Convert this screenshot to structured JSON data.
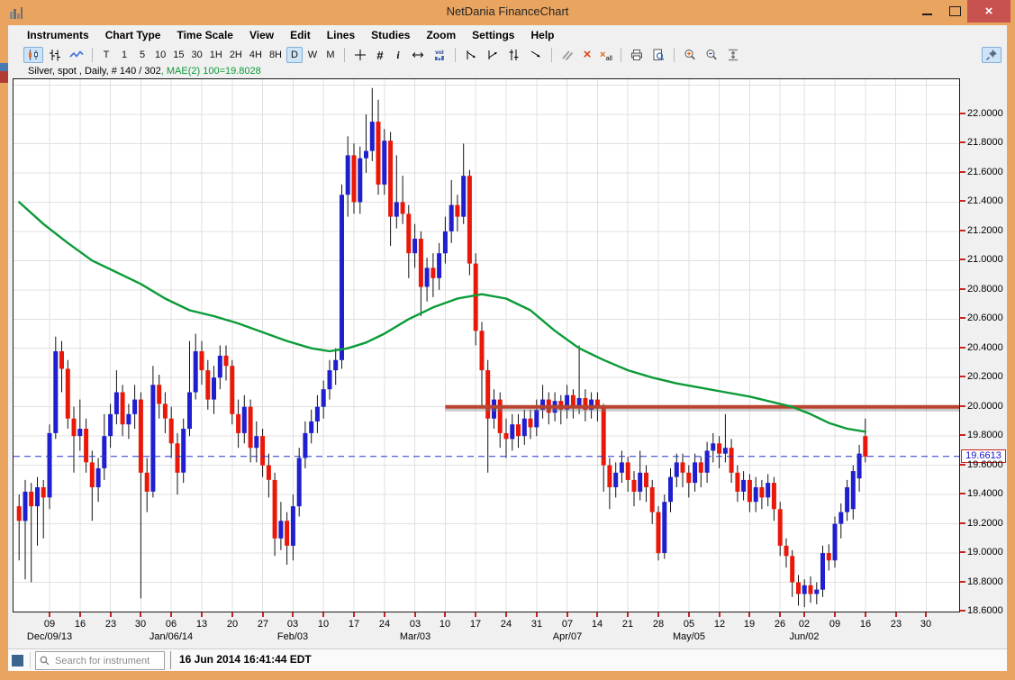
{
  "window": {
    "title": "NetDania FinanceChart",
    "controls": {
      "minimize": "minimize",
      "maximize": "maximize",
      "close": "×"
    }
  },
  "menu": {
    "items": [
      "Instruments",
      "Chart Type",
      "Time Scale",
      "View",
      "Edit",
      "Lines",
      "Studies",
      "Zoom",
      "Settings",
      "Help"
    ]
  },
  "toolbar": {
    "chart_type_group": [
      {
        "name": "candlestick-chart",
        "selected": true
      },
      {
        "name": "bar-chart",
        "selected": false
      },
      {
        "name": "line-chart",
        "selected": false
      }
    ],
    "time_scales": [
      {
        "label": "T"
      },
      {
        "label": "1"
      },
      {
        "label": "5"
      },
      {
        "label": "10"
      },
      {
        "label": "15"
      },
      {
        "label": "30"
      },
      {
        "label": "1H"
      },
      {
        "label": "2H"
      },
      {
        "label": "4H"
      },
      {
        "label": "8H"
      },
      {
        "label": "D",
        "selected": true
      },
      {
        "label": "W"
      },
      {
        "label": "M"
      }
    ],
    "tool_groups": [
      [
        "crosshair",
        "grid-toggle",
        "info",
        "scroll-horizontal",
        "volume"
      ],
      [
        "trend-line",
        "trend-ray",
        "equidistant-channel",
        "draw-arrow"
      ],
      [
        "parallel-lines",
        "delete-line",
        "delete-all-lines"
      ],
      [
        "print",
        "print-preview"
      ],
      [
        "zoom-in",
        "zoom-out",
        "fit-height"
      ]
    ],
    "glyphs": {
      "info": "i",
      "grid": "#",
      "delete": "×",
      "delete_all_suffix": "all",
      "volume": "vol"
    },
    "pin": {
      "name": "pin-window",
      "selected": true
    }
  },
  "chart": {
    "instrument_label": "Silver, spot , Daily, # 140 / 302",
    "study_label": ", MAE(2) 100=19.8028"
  },
  "chart_data": {
    "type": "candlestick",
    "title": "Silver, spot, Daily",
    "bars_shown": "140 / 302",
    "y_axis": {
      "min_label": 18.6,
      "max_label": 22.0,
      "step": 0.2,
      "top_price": 22.24,
      "bottom_price": 18.6
    },
    "y_tick_labels": [
      "22.0000",
      "21.8000",
      "21.6000",
      "21.4000",
      "21.2000",
      "21.0000",
      "20.8000",
      "20.6000",
      "20.4000",
      "20.2000",
      "20.0000",
      "19.8000",
      "19.6000",
      "19.4000",
      "19.2000",
      "19.0000",
      "18.8000",
      "18.6000"
    ],
    "x_ticks": [
      [
        5,
        "09"
      ],
      [
        10,
        "16"
      ],
      [
        15,
        "23"
      ],
      [
        20,
        "30"
      ],
      [
        25,
        "06"
      ],
      [
        30,
        "13"
      ],
      [
        35,
        "20"
      ],
      [
        40,
        "27"
      ],
      [
        45,
        "03"
      ],
      [
        50,
        "10"
      ],
      [
        55,
        "17"
      ],
      [
        60,
        "24"
      ],
      [
        65,
        "03"
      ],
      [
        70,
        "10"
      ],
      [
        75,
        "17"
      ],
      [
        80,
        "24"
      ],
      [
        85,
        "31"
      ],
      [
        90,
        "07"
      ],
      [
        95,
        "14"
      ],
      [
        100,
        "21"
      ],
      [
        105,
        "28"
      ],
      [
        110,
        "05"
      ],
      [
        115,
        "12"
      ],
      [
        120,
        "19"
      ],
      [
        125,
        "26"
      ],
      [
        129,
        "02"
      ],
      [
        134,
        "09"
      ],
      [
        139,
        "16"
      ],
      [
        144,
        "23"
      ],
      [
        149,
        "30"
      ]
    ],
    "x_month_labels": [
      [
        5,
        "Dec/09/13"
      ],
      [
        25,
        "Jan/06/14"
      ],
      [
        45,
        "Feb/03"
      ],
      [
        65,
        "Mar/03"
      ],
      [
        90,
        "Apr/07"
      ],
      [
        110,
        "May/05"
      ],
      [
        129,
        "Jun/02"
      ]
    ],
    "ohlc": [
      [
        19.32,
        19.4,
        18.95,
        19.22
      ],
      [
        19.22,
        19.5,
        18.82,
        19.42
      ],
      [
        19.42,
        19.48,
        18.8,
        19.32
      ],
      [
        19.32,
        19.52,
        19.05,
        19.45
      ],
      [
        19.45,
        19.5,
        19.1,
        19.38
      ],
      [
        19.38,
        19.88,
        19.3,
        19.82
      ],
      [
        19.82,
        20.48,
        19.78,
        20.38
      ],
      [
        20.38,
        20.45,
        20.1,
        20.26
      ],
      [
        20.26,
        20.32,
        19.85,
        19.92
      ],
      [
        19.92,
        20.0,
        19.55,
        19.8
      ],
      [
        19.8,
        20.05,
        19.7,
        19.85
      ],
      [
        19.85,
        19.92,
        19.55,
        19.62
      ],
      [
        19.62,
        19.7,
        19.22,
        19.45
      ],
      [
        19.45,
        19.65,
        19.35,
        19.58
      ],
      [
        19.58,
        19.95,
        19.5,
        19.8
      ],
      [
        19.8,
        20.02,
        19.72,
        19.95
      ],
      [
        19.95,
        20.25,
        19.88,
        20.1
      ],
      [
        20.1,
        20.15,
        19.8,
        19.88
      ],
      [
        19.88,
        20.02,
        19.78,
        19.95
      ],
      [
        19.95,
        20.15,
        19.85,
        20.05
      ],
      [
        20.05,
        20.1,
        18.69,
        19.55
      ],
      [
        19.55,
        19.65,
        19.28,
        19.42
      ],
      [
        19.42,
        20.28,
        19.38,
        20.15
      ],
      [
        20.15,
        20.22,
        19.92,
        20.02
      ],
      [
        20.02,
        20.1,
        19.82,
        19.92
      ],
      [
        19.92,
        20.0,
        19.65,
        19.75
      ],
      [
        19.75,
        19.82,
        19.4,
        19.55
      ],
      [
        19.55,
        19.92,
        19.48,
        19.85
      ],
      [
        19.85,
        20.45,
        19.8,
        20.1
      ],
      [
        20.1,
        20.5,
        20.05,
        20.38
      ],
      [
        20.38,
        20.45,
        20.15,
        20.25
      ],
      [
        20.25,
        20.32,
        19.98,
        20.05
      ],
      [
        20.05,
        20.28,
        19.95,
        20.2
      ],
      [
        20.2,
        20.42,
        20.12,
        20.35
      ],
      [
        20.35,
        20.42,
        20.18,
        20.28
      ],
      [
        20.28,
        20.32,
        19.88,
        19.95
      ],
      [
        19.95,
        20.05,
        19.72,
        19.82
      ],
      [
        19.82,
        20.08,
        19.75,
        20.0
      ],
      [
        20.0,
        20.05,
        19.62,
        19.72
      ],
      [
        19.72,
        19.9,
        19.62,
        19.8
      ],
      [
        19.8,
        19.85,
        19.52,
        19.6
      ],
      [
        19.6,
        19.68,
        19.38,
        19.5
      ],
      [
        19.5,
        19.55,
        18.98,
        19.1
      ],
      [
        19.1,
        19.35,
        19.02,
        19.22
      ],
      [
        19.22,
        19.28,
        18.92,
        19.05
      ],
      [
        19.05,
        19.4,
        18.95,
        19.32
      ],
      [
        19.32,
        19.72,
        19.25,
        19.65
      ],
      [
        19.65,
        19.9,
        19.58,
        19.82
      ],
      [
        19.82,
        19.98,
        19.75,
        19.9
      ],
      [
        19.9,
        20.08,
        19.82,
        20.0
      ],
      [
        20.0,
        20.18,
        19.92,
        20.12
      ],
      [
        20.12,
        20.32,
        20.05,
        20.25
      ],
      [
        20.25,
        20.4,
        20.15,
        20.32
      ],
      [
        20.32,
        21.52,
        20.26,
        21.45
      ],
      [
        21.45,
        21.85,
        21.3,
        21.72
      ],
      [
        21.72,
        21.8,
        21.32,
        21.4
      ],
      [
        21.4,
        21.78,
        21.32,
        21.7
      ],
      [
        21.7,
        22.0,
        21.6,
        21.75
      ],
      [
        21.75,
        22.18,
        21.68,
        21.95
      ],
      [
        21.95,
        22.1,
        21.45,
        21.52
      ],
      [
        21.52,
        21.9,
        21.45,
        21.82
      ],
      [
        21.82,
        21.88,
        21.1,
        21.3
      ],
      [
        21.3,
        21.72,
        21.22,
        21.4
      ],
      [
        21.4,
        21.58,
        21.25,
        21.32
      ],
      [
        21.32,
        21.38,
        20.88,
        21.05
      ],
      [
        21.05,
        21.25,
        20.95,
        21.15
      ],
      [
        21.15,
        21.2,
        20.62,
        20.82
      ],
      [
        20.82,
        21.02,
        20.72,
        20.95
      ],
      [
        20.95,
        21.05,
        20.75,
        20.88
      ],
      [
        20.88,
        21.12,
        20.8,
        21.05
      ],
      [
        21.05,
        21.3,
        20.98,
        21.2
      ],
      [
        21.2,
        21.55,
        21.12,
        21.38
      ],
      [
        21.38,
        21.45,
        21.2,
        21.3
      ],
      [
        21.3,
        21.8,
        21.25,
        21.58
      ],
      [
        21.58,
        21.62,
        20.9,
        20.98
      ],
      [
        20.98,
        21.05,
        20.42,
        20.52
      ],
      [
        20.52,
        20.58,
        20.0,
        20.25
      ],
      [
        20.25,
        20.32,
        19.55,
        19.92
      ],
      [
        19.92,
        20.12,
        19.85,
        20.05
      ],
      [
        20.05,
        20.1,
        19.72,
        19.82
      ],
      [
        19.82,
        19.92,
        19.65,
        19.78
      ],
      [
        19.78,
        19.95,
        19.7,
        19.88
      ],
      [
        19.88,
        19.95,
        19.72,
        19.8
      ],
      [
        19.8,
        19.98,
        19.74,
        19.92
      ],
      [
        19.92,
        19.98,
        19.78,
        19.86
      ],
      [
        19.86,
        20.05,
        19.8,
        19.98
      ],
      [
        19.98,
        20.15,
        19.92,
        20.05
      ],
      [
        20.05,
        20.1,
        19.88,
        19.96
      ],
      [
        19.96,
        20.1,
        19.9,
        20.04
      ],
      [
        20.04,
        20.08,
        19.88,
        19.98
      ],
      [
        19.98,
        20.15,
        19.92,
        20.08
      ],
      [
        20.08,
        20.12,
        19.92,
        20.0
      ],
      [
        20.0,
        20.42,
        19.95,
        20.06
      ],
      [
        20.06,
        20.12,
        19.9,
        19.98
      ],
      [
        19.98,
        20.1,
        19.92,
        20.05
      ],
      [
        20.05,
        20.1,
        19.9,
        19.99
      ],
      [
        19.99,
        20.02,
        19.42,
        19.6
      ],
      [
        19.6,
        19.65,
        19.3,
        19.45
      ],
      [
        19.45,
        19.62,
        19.38,
        19.55
      ],
      [
        19.55,
        19.7,
        19.48,
        19.62
      ],
      [
        19.62,
        19.66,
        19.42,
        19.5
      ],
      [
        19.5,
        19.56,
        19.32,
        19.42
      ],
      [
        19.42,
        19.7,
        19.36,
        19.55
      ],
      [
        19.55,
        19.6,
        19.35,
        19.45
      ],
      [
        19.45,
        19.5,
        19.2,
        19.28
      ],
      [
        19.28,
        19.32,
        18.95,
        19.0
      ],
      [
        19.0,
        19.4,
        18.96,
        19.35
      ],
      [
        19.35,
        19.58,
        19.28,
        19.52
      ],
      [
        19.52,
        19.68,
        19.45,
        19.62
      ],
      [
        19.62,
        19.68,
        19.45,
        19.55
      ],
      [
        19.55,
        19.6,
        19.38,
        19.48
      ],
      [
        19.48,
        19.68,
        19.42,
        19.62
      ],
      [
        19.62,
        19.66,
        19.45,
        19.55
      ],
      [
        19.55,
        19.76,
        19.48,
        19.7
      ],
      [
        19.7,
        19.82,
        19.62,
        19.75
      ],
      [
        19.75,
        19.8,
        19.58,
        19.68
      ],
      [
        19.68,
        19.95,
        19.62,
        19.72
      ],
      [
        19.72,
        19.78,
        19.48,
        19.55
      ],
      [
        19.55,
        19.6,
        19.35,
        19.42
      ],
      [
        19.42,
        19.56,
        19.36,
        19.5
      ],
      [
        19.5,
        19.54,
        19.28,
        19.35
      ],
      [
        19.35,
        19.52,
        19.28,
        19.45
      ],
      [
        19.45,
        19.5,
        19.3,
        19.38
      ],
      [
        19.38,
        19.54,
        19.32,
        19.48
      ],
      [
        19.48,
        19.52,
        19.22,
        19.3
      ],
      [
        19.3,
        19.35,
        18.98,
        19.05
      ],
      [
        19.05,
        19.1,
        18.9,
        18.98
      ],
      [
        18.98,
        19.02,
        18.7,
        18.8
      ],
      [
        18.8,
        18.85,
        18.64,
        18.72
      ],
      [
        18.72,
        18.82,
        18.63,
        18.78
      ],
      [
        18.78,
        18.84,
        18.66,
        18.72
      ],
      [
        18.72,
        18.8,
        18.65,
        18.75
      ],
      [
        18.75,
        19.05,
        18.7,
        19.0
      ],
      [
        19.0,
        19.06,
        18.88,
        18.95
      ],
      [
        18.95,
        19.25,
        18.9,
        19.2
      ],
      [
        19.2,
        19.34,
        19.1,
        19.28
      ],
      [
        19.28,
        19.5,
        19.22,
        19.45
      ],
      [
        19.3,
        19.6,
        19.23,
        19.56
      ],
      [
        19.51,
        19.74,
        19.42,
        19.68
      ],
      [
        19.8,
        19.92,
        19.62,
        19.66
      ]
    ],
    "ma_line": {
      "name": "MAE(2) 100",
      "last_value": 19.8028,
      "color": "#0b9b38",
      "points": [
        [
          0,
          21.4
        ],
        [
          4,
          21.25
        ],
        [
          8,
          21.12
        ],
        [
          12,
          21.0
        ],
        [
          16,
          20.92
        ],
        [
          20,
          20.84
        ],
        [
          24,
          20.74
        ],
        [
          28,
          20.66
        ],
        [
          32,
          20.62
        ],
        [
          36,
          20.57
        ],
        [
          40,
          20.51
        ],
        [
          44,
          20.45
        ],
        [
          48,
          20.4
        ],
        [
          51,
          20.38
        ],
        [
          54,
          20.4
        ],
        [
          57,
          20.44
        ],
        [
          60,
          20.5
        ],
        [
          64,
          20.6
        ],
        [
          68,
          20.68
        ],
        [
          72,
          20.74
        ],
        [
          76,
          20.77
        ],
        [
          80,
          20.74
        ],
        [
          84,
          20.66
        ],
        [
          88,
          20.52
        ],
        [
          92,
          20.4
        ],
        [
          96,
          20.32
        ],
        [
          100,
          20.25
        ],
        [
          104,
          20.2
        ],
        [
          108,
          20.16
        ],
        [
          112,
          20.13
        ],
        [
          116,
          20.1
        ],
        [
          120,
          20.07
        ],
        [
          124,
          20.03
        ],
        [
          127,
          20.0
        ],
        [
          130,
          19.95
        ],
        [
          133,
          19.89
        ],
        [
          136,
          19.85
        ],
        [
          139,
          19.83
        ]
      ]
    },
    "trend_line": {
      "price": 20.0,
      "start_index": 70,
      "color": "#b8432f"
    },
    "current_price_line": {
      "price": 19.6613,
      "style": "dashed",
      "color": "#2233cc"
    },
    "last_price_label": "19.6613",
    "colors": {
      "up_candle": "#1f1fd0",
      "down_candle": "#ea1808",
      "wick": "#111111",
      "grid": "#e0e0e0",
      "tick": "#cc2222"
    },
    "legend_position": "none",
    "grid": true
  },
  "statusbar": {
    "search_placeholder": "Search for instrument",
    "timestamp": "16 Jun 2014 16:41:44 EDT"
  }
}
